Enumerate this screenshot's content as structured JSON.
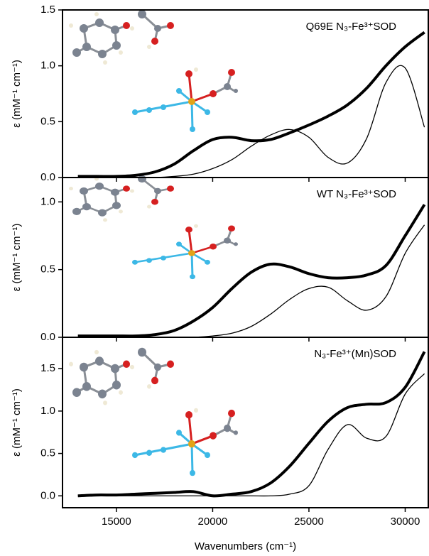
{
  "chart_data": [
    {
      "type": "line",
      "label": "Q69E N₃-Fe³⁺SOD",
      "ylabel": "ε (mM⁻¹ cm⁻¹)",
      "x": [
        13000,
        14000,
        15000,
        16000,
        17000,
        18000,
        19000,
        20000,
        21000,
        22000,
        23000,
        24000,
        25000,
        26000,
        27000,
        28000,
        29000,
        30000,
        31000
      ],
      "series": [
        {
          "color": "#000000",
          "linewidth": 4,
          "values": [
            0.01,
            0.01,
            0.01,
            0.02,
            0.05,
            0.12,
            0.24,
            0.34,
            0.36,
            0.33,
            0.34,
            0.4,
            0.47,
            0.55,
            0.65,
            0.8,
            1.0,
            1.17,
            1.3
          ]
        },
        {
          "color": "#000000",
          "linewidth": 1.3,
          "values": [
            0,
            0,
            0,
            0,
            0,
            0.01,
            0.03,
            0.08,
            0.16,
            0.28,
            0.38,
            0.43,
            0.36,
            0.18,
            0.13,
            0.35,
            0.85,
            0.98,
            0.45
          ]
        }
      ],
      "xlim": [
        12200,
        31200
      ],
      "ylim": [
        0,
        1.5
      ],
      "yticks": [
        {
          "value": 0,
          "label": "0.0"
        },
        0.5,
        {
          "value": 1,
          "label": "1.0"
        },
        1.5
      ]
    },
    {
      "type": "line",
      "label": "WT N₃-Fe³⁺SOD",
      "ylabel": "ε (mM⁻¹ cm⁻¹)",
      "x": [
        13000,
        14000,
        15000,
        16000,
        17000,
        18000,
        19000,
        20000,
        21000,
        22000,
        23000,
        24000,
        25000,
        26000,
        27000,
        28000,
        29000,
        30000,
        31000
      ],
      "series": [
        {
          "color": "#000000",
          "linewidth": 4,
          "values": [
            0.01,
            0.01,
            0.01,
            0.01,
            0.02,
            0.05,
            0.12,
            0.22,
            0.36,
            0.48,
            0.54,
            0.52,
            0.47,
            0.44,
            0.44,
            0.46,
            0.53,
            0.75,
            0.98
          ]
        },
        {
          "color": "#000000",
          "linewidth": 1.3,
          "values": [
            0,
            0,
            0,
            0,
            0,
            0,
            0,
            0.01,
            0.03,
            0.08,
            0.17,
            0.28,
            0.36,
            0.37,
            0.27,
            0.2,
            0.3,
            0.62,
            0.83
          ]
        }
      ],
      "xlim": [
        12200,
        31200
      ],
      "ylim": [
        0,
        1.18
      ],
      "yticks": [
        {
          "value": 0,
          "label": "0.0"
        },
        0.5,
        {
          "value": 1,
          "label": "1.0"
        }
      ]
    },
    {
      "type": "line",
      "label": "N₃-Fe³⁺(Mn)SOD",
      "ylabel": "ε (mM⁻¹ cm⁻¹)",
      "xlabel": "Wavenumbers (cm⁻¹)",
      "x": [
        13000,
        14000,
        15000,
        16000,
        17000,
        18000,
        19000,
        20000,
        21000,
        22000,
        23000,
        24000,
        25000,
        26000,
        27000,
        28000,
        29000,
        30000,
        31000
      ],
      "series": [
        {
          "color": "#000000",
          "linewidth": 4,
          "values": [
            0.0,
            0.01,
            0.01,
            0.02,
            0.03,
            0.04,
            0.05,
            0.0,
            0.02,
            0.05,
            0.15,
            0.35,
            0.62,
            0.88,
            1.04,
            1.08,
            1.1,
            1.28,
            1.7
          ]
        },
        {
          "color": "#000000",
          "linewidth": 1.3,
          "values": [
            0,
            0,
            0,
            0,
            0,
            0,
            0,
            0,
            0,
            0,
            0,
            0.02,
            0.12,
            0.55,
            0.84,
            0.68,
            0.7,
            1.2,
            1.44
          ]
        }
      ],
      "xlim": [
        12200,
        31200
      ],
      "ylim": [
        -0.14,
        1.87
      ],
      "xticks": [
        15000,
        20000,
        25000,
        30000
      ],
      "yticks": [
        {
          "value": 0,
          "label": "0.0"
        },
        0.5,
        {
          "value": 1,
          "label": "1.0"
        },
        1.5
      ]
    }
  ]
}
